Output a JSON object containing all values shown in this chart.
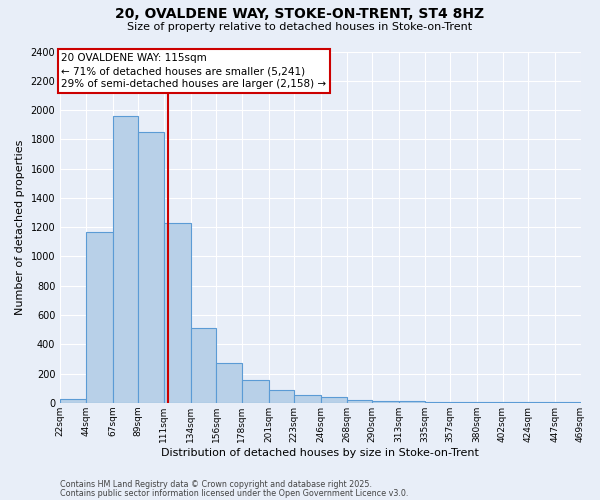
{
  "title": "20, OVALDENE WAY, STOKE-ON-TRENT, ST4 8HZ",
  "subtitle": "Size of property relative to detached houses in Stoke-on-Trent",
  "xlabel": "Distribution of detached houses by size in Stoke-on-Trent",
  "ylabel": "Number of detached properties",
  "footnote1": "Contains HM Land Registry data © Crown copyright and database right 2025.",
  "footnote2": "Contains public sector information licensed under the Open Government Licence v3.0.",
  "bin_edges": [
    22,
    44,
    67,
    89,
    111,
    134,
    156,
    178,
    201,
    223,
    246,
    268,
    290,
    313,
    335,
    357,
    380,
    402,
    424,
    447,
    469
  ],
  "bar_heights": [
    25,
    1170,
    1960,
    1850,
    1230,
    510,
    270,
    155,
    90,
    50,
    40,
    20,
    15,
    10,
    5,
    5,
    5,
    5,
    5,
    5
  ],
  "bar_color": "#b8d0e8",
  "bar_edgecolor": "#5b9bd5",
  "red_line_x": 115,
  "red_line_color": "#cc0000",
  "annotation_line1": "20 OVALDENE WAY: 115sqm",
  "annotation_line2": "← 71% of detached houses are smaller (5,241)",
  "annotation_line3": "29% of semi-detached houses are larger (2,158) →",
  "annotation_box_color": "#cc0000",
  "ylim": [
    0,
    2400
  ],
  "yticks": [
    0,
    200,
    400,
    600,
    800,
    1000,
    1200,
    1400,
    1600,
    1800,
    2000,
    2200,
    2400
  ],
  "tick_labels": [
    "22sqm",
    "44sqm",
    "67sqm",
    "89sqm",
    "111sqm",
    "134sqm",
    "156sqm",
    "178sqm",
    "201sqm",
    "223sqm",
    "246sqm",
    "268sqm",
    "290sqm",
    "313sqm",
    "335sqm",
    "357sqm",
    "380sqm",
    "402sqm",
    "424sqm",
    "447sqm",
    "469sqm"
  ],
  "background_color": "#e8eef8",
  "plot_bg_color": "#e8eef8",
  "grid_color": "#ffffff",
  "title_fontsize": 10,
  "subtitle_fontsize": 8,
  "ylabel_fontsize": 8,
  "xlabel_fontsize": 8,
  "tick_fontsize": 7,
  "annot_fontsize": 7.5
}
